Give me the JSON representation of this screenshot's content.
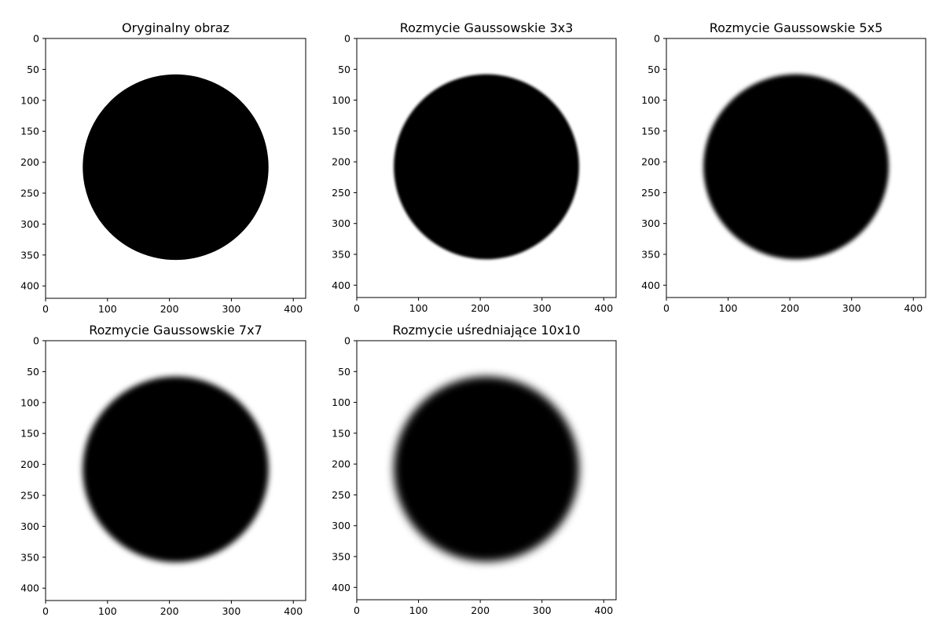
{
  "chart_data": [
    {
      "type": "image",
      "title": "Oryginalny obraz",
      "xlim": [
        0,
        420
      ],
      "ylim": [
        420,
        0
      ],
      "xticks": [
        0,
        100,
        200,
        300,
        400
      ],
      "yticks": [
        0,
        50,
        100,
        150,
        200,
        250,
        300,
        350,
        400
      ],
      "circle": {
        "cx": 210,
        "cy": 208,
        "r": 150
      },
      "blur": 0
    },
    {
      "type": "image",
      "title": "Rozmycie Gaussowskie 3x3",
      "xlim": [
        0,
        420
      ],
      "ylim": [
        420,
        0
      ],
      "xticks": [
        0,
        100,
        200,
        300,
        400
      ],
      "yticks": [
        0,
        50,
        100,
        150,
        200,
        250,
        300,
        350,
        400
      ],
      "circle": {
        "cx": 210,
        "cy": 208,
        "r": 150
      },
      "blur": 3
    },
    {
      "type": "image",
      "title": "Rozmycie Gaussowskie 5x5",
      "xlim": [
        0,
        420
      ],
      "ylim": [
        420,
        0
      ],
      "xticks": [
        0,
        100,
        200,
        300,
        400
      ],
      "yticks": [
        0,
        50,
        100,
        150,
        200,
        250,
        300,
        350,
        400
      ],
      "circle": {
        "cx": 210,
        "cy": 208,
        "r": 150
      },
      "blur": 5
    },
    {
      "type": "image",
      "title": "Rozmycie Gaussowskie 7x7",
      "xlim": [
        0,
        420
      ],
      "ylim": [
        420,
        0
      ],
      "xticks": [
        0,
        100,
        200,
        300,
        400
      ],
      "yticks": [
        0,
        50,
        100,
        150,
        200,
        250,
        300,
        350,
        400
      ],
      "circle": {
        "cx": 210,
        "cy": 208,
        "r": 150
      },
      "blur": 7
    },
    {
      "type": "image",
      "title": "Rozmycie uśredniające 10x10",
      "xlim": [
        0,
        420
      ],
      "ylim": [
        420,
        0
      ],
      "xticks": [
        0,
        100,
        200,
        300,
        400
      ],
      "yticks": [
        0,
        50,
        100,
        150,
        200,
        250,
        300,
        350,
        400
      ],
      "circle": {
        "cx": 210,
        "cy": 208,
        "r": 150
      },
      "blur": 10
    }
  ]
}
